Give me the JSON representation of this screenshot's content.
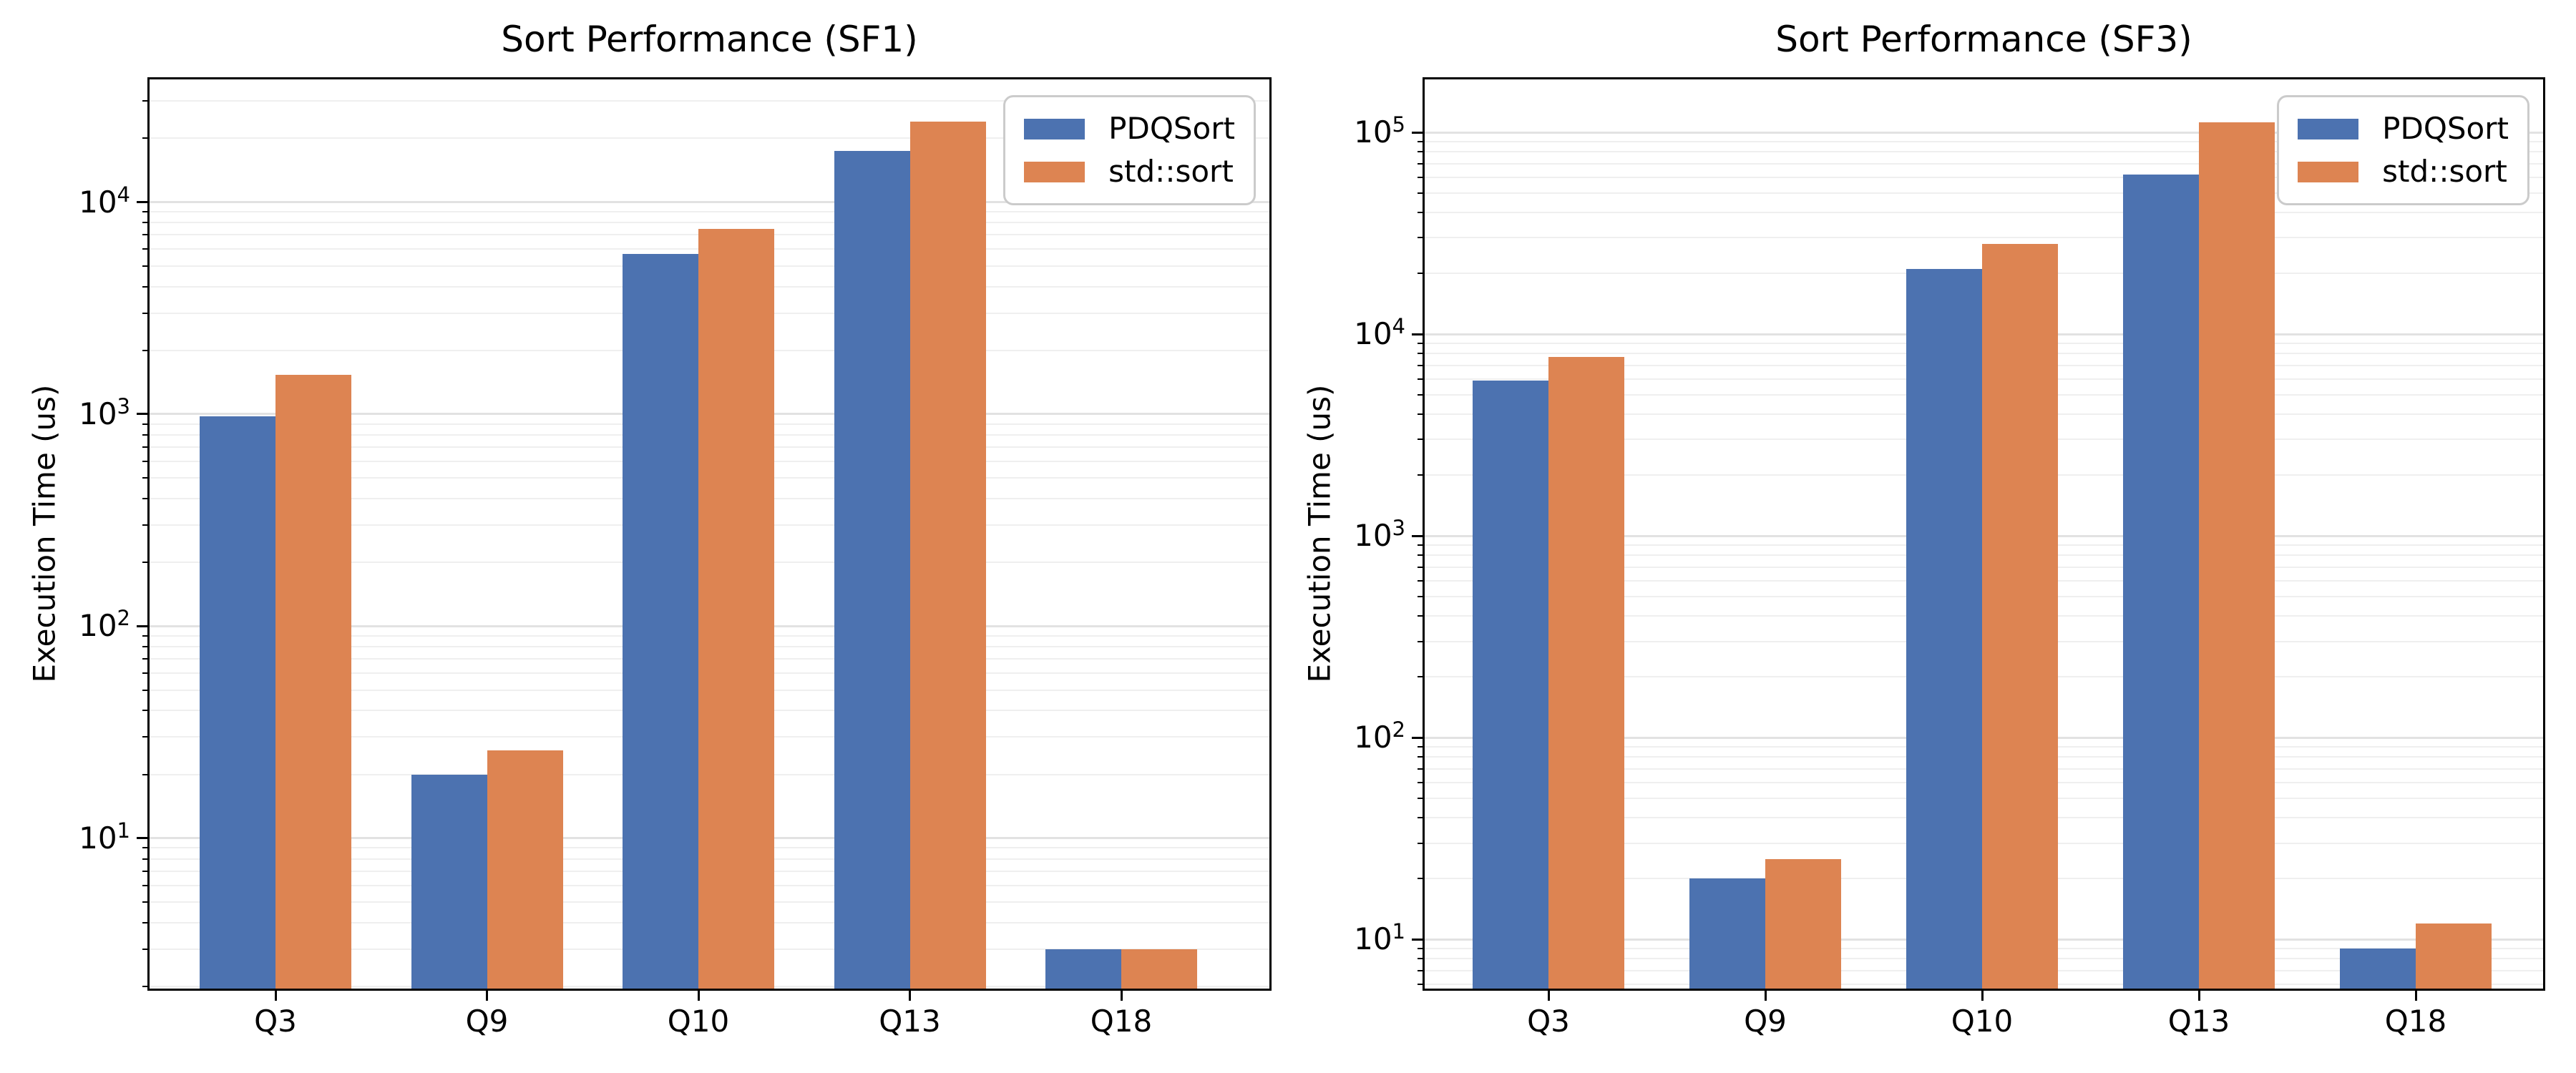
{
  "figure": {
    "background": "#ffffff",
    "text_color": "#000000"
  },
  "palette": {
    "pdqsort": "#4C72B0",
    "stdsort": "#DD8452",
    "grid_major": "#E2E2E2",
    "grid_minor": "#EFEFEF",
    "spine": "#000000",
    "legend_border": "#CBCBCB"
  },
  "chart_data": [
    {
      "type": "bar",
      "title": "Sort Performance (SF1)",
      "ylabel": "Execution Time (us)",
      "xlabel": "",
      "yscale": "log",
      "grid": true,
      "legend_position": "upper right",
      "categories": [
        "Q3",
        "Q9",
        "Q10",
        "Q13",
        "Q18"
      ],
      "series": [
        {
          "name": "PDQSort",
          "color": "#4C72B0",
          "values": [
            975,
            20,
            5700,
            17500,
            3
          ]
        },
        {
          "name": "std::sort",
          "color": "#DD8452",
          "values": [
            1530,
            26,
            7500,
            24000,
            3
          ]
        }
      ],
      "ylim": [
        1.94,
        38200
      ],
      "ytick_exponents": [
        1,
        2,
        3,
        4
      ]
    },
    {
      "type": "bar",
      "title": "Sort Performance (SF3)",
      "ylabel": "Execution Time (us)",
      "xlabel": "",
      "yscale": "log",
      "grid": true,
      "legend_position": "upper right",
      "categories": [
        "Q3",
        "Q9",
        "Q10",
        "Q13",
        "Q18"
      ],
      "series": [
        {
          "name": "PDQSort",
          "color": "#4C72B0",
          "values": [
            5900,
            20,
            21000,
            62000,
            9
          ]
        },
        {
          "name": "std::sort",
          "color": "#DD8452",
          "values": [
            7700,
            25,
            28000,
            112000,
            12
          ]
        }
      ],
      "ylim": [
        5.65,
        184500
      ],
      "ytick_exponents": [
        1,
        2,
        3,
        4,
        5
      ]
    }
  ]
}
